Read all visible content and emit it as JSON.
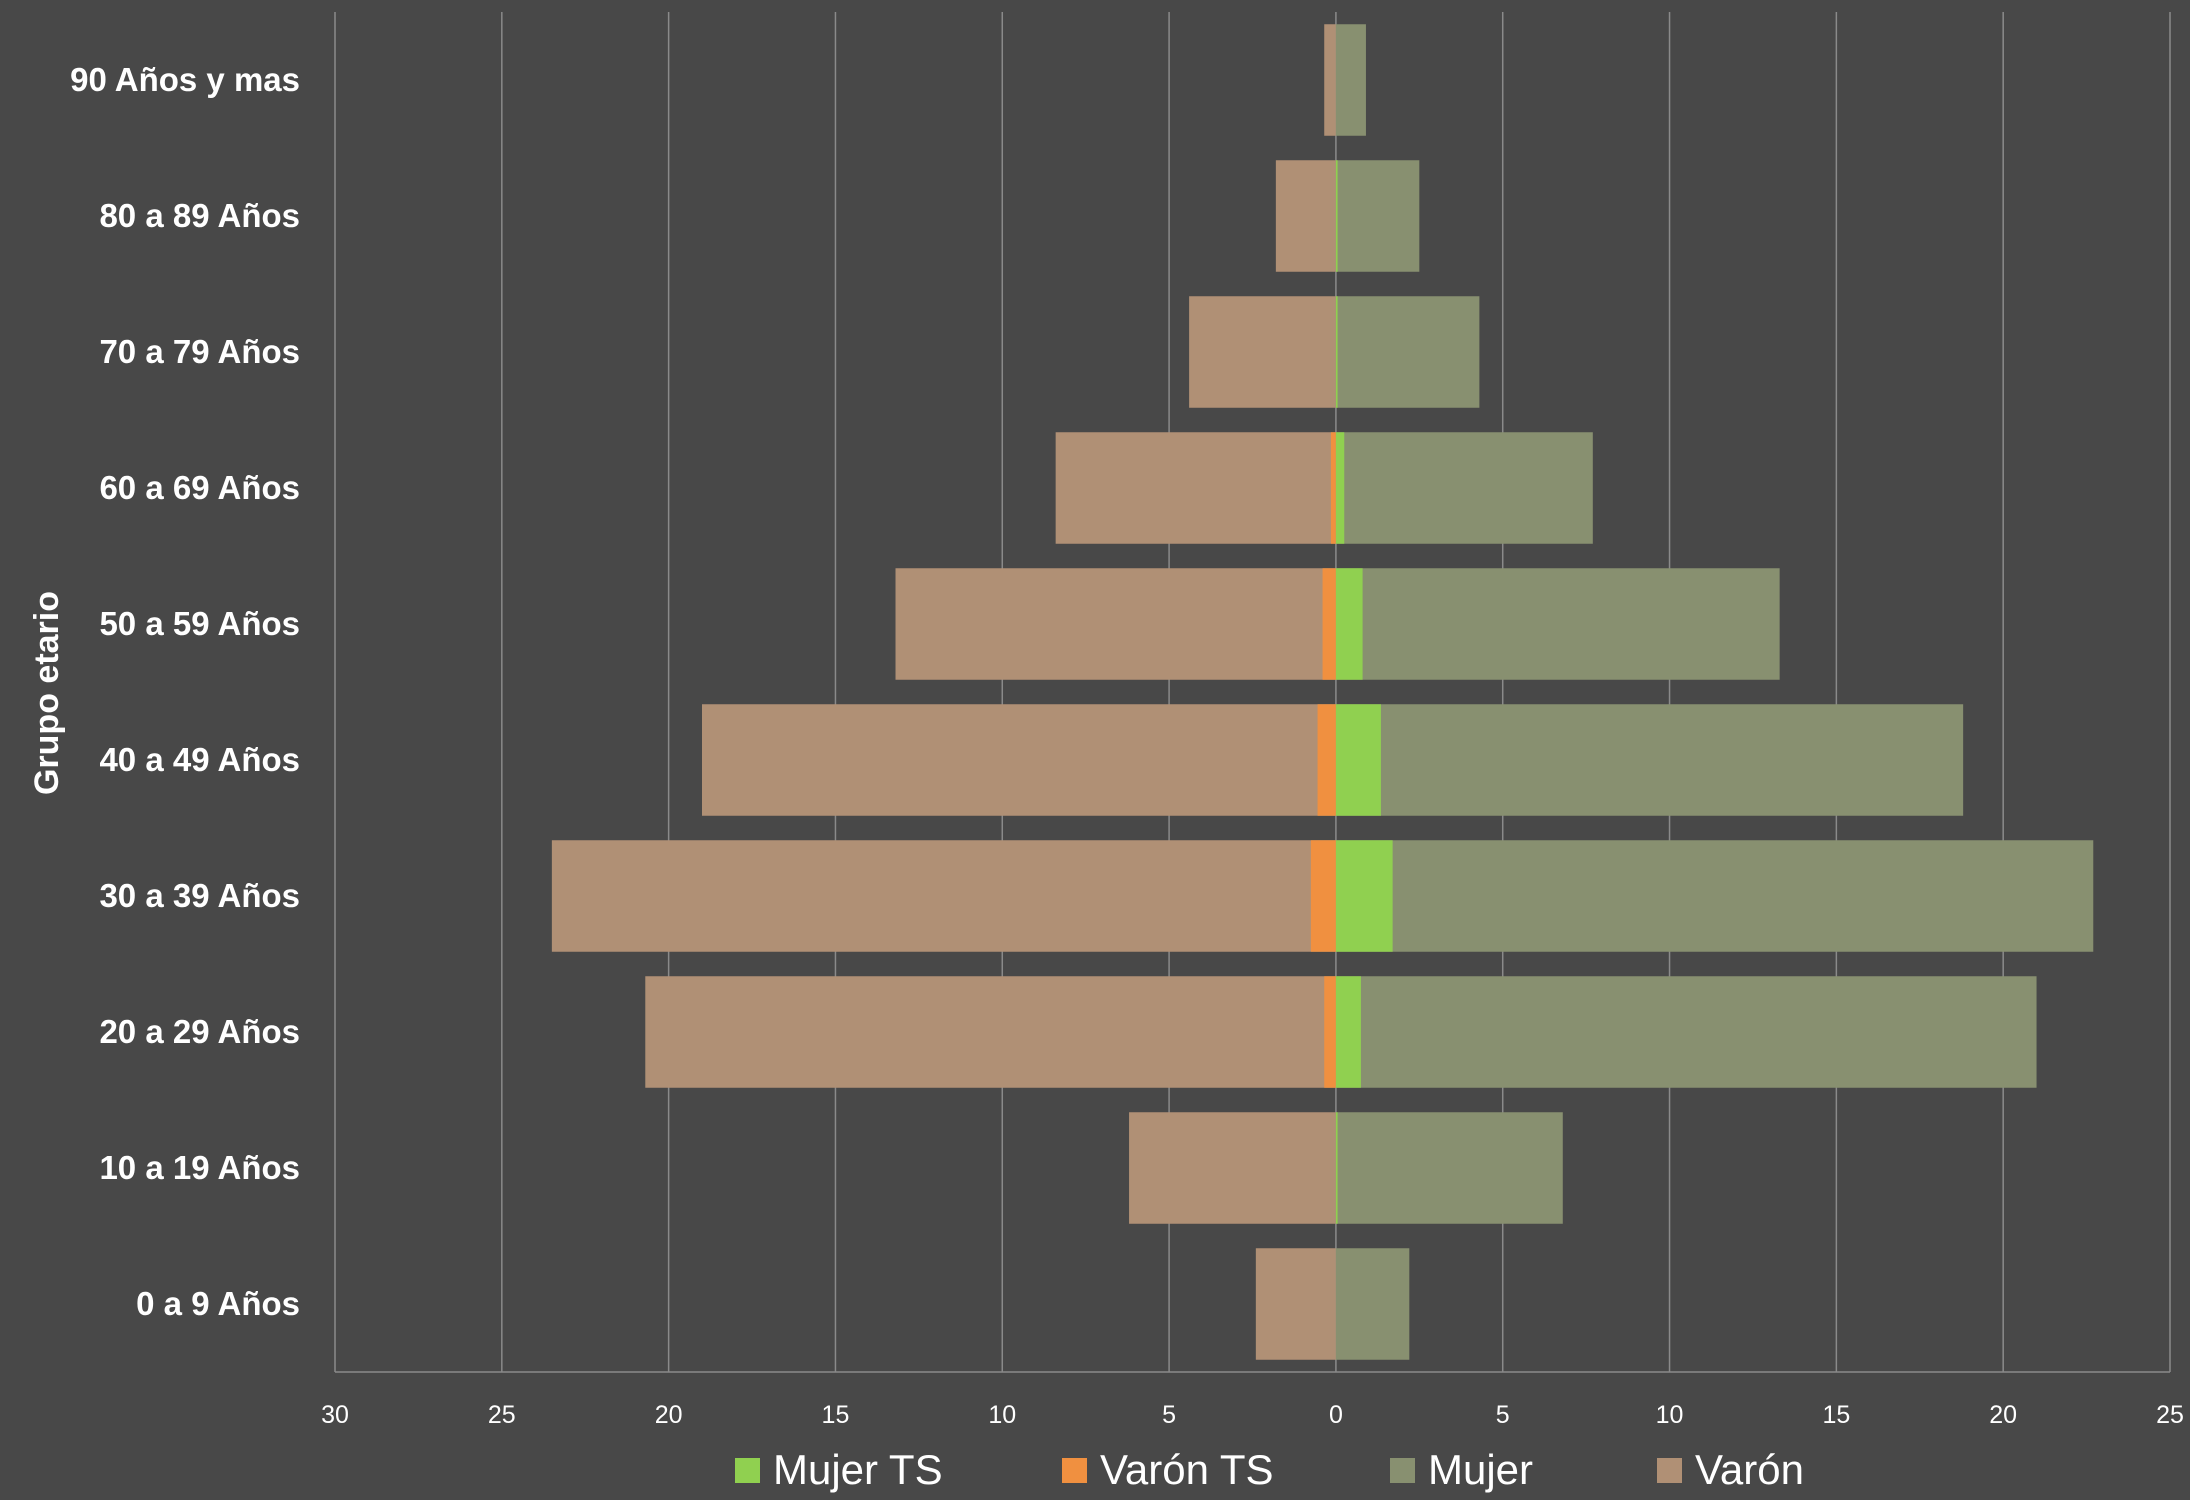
{
  "chart_data": {
    "type": "bar",
    "orientation": "horizontal",
    "layout": "population-pyramid",
    "ylabel": "Grupo etario",
    "xlabel": "",
    "categories": [
      "0 a 9 Años",
      "10 a 19 Años",
      "20 a 29 Años",
      "30 a 39 Años",
      "40 a 49 Años",
      "50 a 59 Años",
      "60 a 69 Años",
      "70 a 79 Años",
      "80 a 89 Años",
      "90 Años y mas"
    ],
    "x_ticks": [
      "30",
      "25",
      "20",
      "15",
      "10",
      "5",
      "0",
      "5",
      "10",
      "15",
      "20",
      "25"
    ],
    "xlim": [
      -30,
      25
    ],
    "grid": "vertical",
    "legend_position": "bottom",
    "series": [
      {
        "name": "Varón",
        "side": "left",
        "color": "#b09075",
        "values": [
          2.4,
          6.2,
          20.7,
          23.5,
          19.0,
          13.2,
          8.4,
          4.4,
          1.8,
          0.35
        ]
      },
      {
        "name": "Mujer",
        "side": "right",
        "color": "#889070",
        "values": [
          2.2,
          6.8,
          21.0,
          22.7,
          18.8,
          13.3,
          7.7,
          4.3,
          2.5,
          0.9
        ]
      },
      {
        "name": "Varón TS",
        "side": "left",
        "color": "#f09040",
        "values": [
          0,
          0,
          0.35,
          0.75,
          0.55,
          0.4,
          0.15,
          0,
          0,
          0
        ]
      },
      {
        "name": "Mujer TS",
        "side": "right",
        "color": "#90d050",
        "values": [
          0,
          0.05,
          0.75,
          1.7,
          1.35,
          0.8,
          0.25,
          0.05,
          0.05,
          0
        ]
      }
    ],
    "legend": [
      {
        "name": "Mujer TS",
        "color": "#90d050"
      },
      {
        "name": "Varón TS",
        "color": "#f09040"
      },
      {
        "name": "Mujer",
        "color": "#889070"
      },
      {
        "name": "Varón",
        "color": "#b09075"
      }
    ]
  }
}
